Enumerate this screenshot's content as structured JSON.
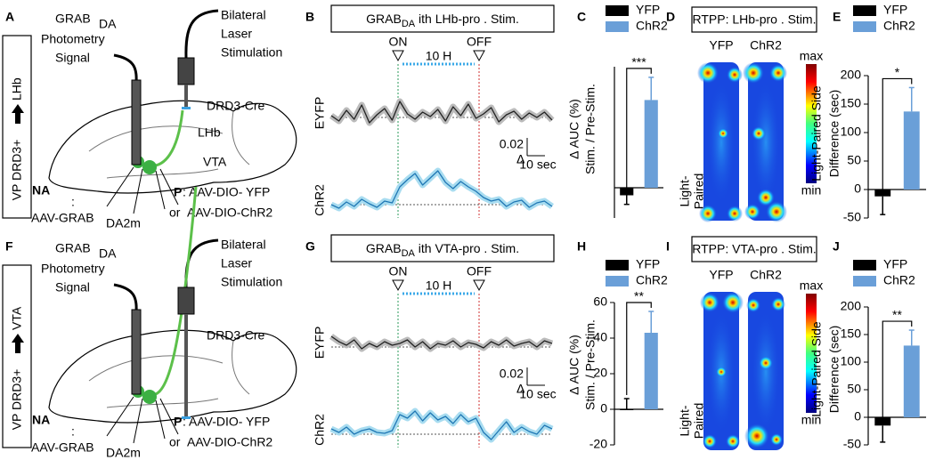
{
  "diagrams": [
    {
      "letter": "A",
      "side_label_1": "VP DRD3+",
      "side_label_2": "LHb",
      "sensor": "GRAB",
      "sensor_sub": "DA",
      "photometry_1": "Photometry",
      "photometry_2": "Signal",
      "laser_1": "Bilateral",
      "laser_2": "Laser",
      "laser_3": "Stimulation",
      "line": "DRD3-Cre",
      "target": "LHb",
      "na": "NA",
      "colon": ":",
      "virus": "AAV-GRAB",
      "virus_sub": "DA2m",
      "p": "P",
      "p_rest": ": AAV-DIO-   YFP",
      "or": "or",
      "chr2": "AAV-DIO-ChR2"
    },
    {
      "letter": "F",
      "side_label_1": "VP DRD3+",
      "side_label_2": "VTA",
      "sensor": "GRAB",
      "sensor_sub": "DA",
      "photometry_1": "Photometry",
      "photometry_2": "Signal",
      "laser_1": "Bilateral",
      "laser_2": "Laser",
      "laser_3": "Stimulation",
      "line": "DRD3-Cre",
      "target": "VTA",
      "na": "NA",
      "colon": ":",
      "virus": "AAV-GRAB",
      "virus_sub": "DA2m",
      "p": "P",
      "p_rest": ": AAV-DIO-   YFP",
      "or": "or",
      "chr2": "AAV-DIO-ChR2"
    }
  ],
  "heatmaps": [
    {
      "letter": "D",
      "title": "RTPP: LHb-pro . Stim.",
      "left": "YFP",
      "right": "ChR2",
      "max": "max",
      "min": "min",
      "side_1": "Light-",
      "side_2": "Paired"
    },
    {
      "letter": "I",
      "title": "RTPP: VTA-pro . Stim.",
      "left": "YFP",
      "right": "ChR2",
      "max": "max",
      "min": "min",
      "side_1": "Light-",
      "side_2": "Paired"
    }
  ],
  "chart_data": [
    {
      "type": "line",
      "letter": "B",
      "title": "GRAB",
      "title_sub": "DA",
      "title_rest": " ith LHb-pro . Stim.",
      "on_label": "ON",
      "off_label": "OFF",
      "duration_label": "10 H",
      "scale_bar": 0.02,
      "scale_unit": "Δ",
      "scale_time": "10 sec",
      "series": [
        {
          "name": "EYFP",
          "color": "#222222",
          "values": [
            0.002,
            -0.004,
            0.008,
            -0.002,
            0.014,
            -0.006,
            0.003,
            0.01,
            -0.003,
            0.018,
            0.004,
            -0.002,
            0.006,
            0.001,
            0.009,
            -0.004,
            0.012,
            0.002,
            0.015,
            -0.001,
            0.004,
            0.011,
            -0.005,
            0.003,
            0.007,
            -0.002,
            0.005,
            0.0,
            0.006,
            -0.003
          ]
        },
        {
          "name": "ChR2",
          "color": "#1f77b4",
          "values": [
            0.0,
            -0.004,
            0.003,
            -0.002,
            0.006,
            0.001,
            -0.003,
            0.004,
            0.002,
            0.02,
            0.028,
            0.035,
            0.022,
            0.03,
            0.038,
            0.025,
            0.018,
            0.026,
            0.02,
            0.015,
            0.008,
            0.004,
            0.006,
            -0.002,
            0.003,
            0.005,
            -0.003,
            0.002,
            0.004,
            -0.002
          ]
        }
      ]
    },
    {
      "type": "bar",
      "letter": "C",
      "ylabel": "Δ AUC (%)",
      "ylabel2": "Stim. / Pre-Stim.",
      "categories": [
        "YFP",
        "ChR2"
      ],
      "colors": [
        "#000000",
        "#6a9fd8"
      ],
      "values": [
        -5,
        58
      ],
      "errors": [
        6,
        15
      ],
      "significance": "***",
      "ylim": [
        -20,
        80
      ]
    },
    {
      "type": "bar",
      "letter": "E",
      "ylabel": "Light-Paired Side",
      "ylabel2": "Difference (sec)",
      "categories": [
        "YFP",
        "ChR2"
      ],
      "colors": [
        "#000000",
        "#6a9fd8"
      ],
      "values": [
        -12,
        137
      ],
      "errors": [
        32,
        42
      ],
      "significance": "*",
      "ylim": [
        -50,
        200
      ],
      "yticks": [
        -50,
        0,
        50,
        100,
        150,
        200
      ]
    },
    {
      "type": "line",
      "letter": "G",
      "title": "GRAB",
      "title_sub": "DA",
      "title_rest": " ith VTA-pro . Stim.",
      "on_label": "ON",
      "off_label": "OFF",
      "duration_label": "10 H",
      "scale_bar": 0.02,
      "scale_unit": "Δ",
      "scale_time": "10 sec",
      "series": [
        {
          "name": "EYFP",
          "color": "#222222",
          "values": [
            0.012,
            0.006,
            0.002,
            0.008,
            -0.002,
            0.004,
            0.0,
            0.006,
            0.002,
            0.004,
            0.008,
            0.0,
            0.006,
            -0.002,
            0.004,
            0.002,
            0.007,
            0.0,
            0.005,
            0.003,
            -0.001,
            0.006,
            0.002,
            0.008,
            0.001,
            0.004,
            0.006,
            0.0,
            0.007,
            0.004
          ]
        },
        {
          "name": "ChR2",
          "color": "#1f77b4",
          "values": [
            0.006,
            0.002,
            0.008,
            0.0,
            0.004,
            0.006,
            0.002,
            0.001,
            0.004,
            0.022,
            0.018,
            0.026,
            0.015,
            0.024,
            0.016,
            0.02,
            0.012,
            0.022,
            0.014,
            0.018,
            0.002,
            -0.006,
            0.004,
            0.014,
            0.002,
            0.008,
            0.003,
            0.0,
            0.01,
            0.006
          ]
        }
      ]
    },
    {
      "type": "bar",
      "letter": "H",
      "ylabel": "Δ AUC (%)",
      "ylabel2": "Stim. / Pre-Stim.",
      "categories": [
        "YFP",
        "ChR2"
      ],
      "colors": [
        "#000000",
        "#6a9fd8"
      ],
      "values": [
        0,
        43
      ],
      "errors": [
        6,
        12
      ],
      "significance": "**",
      "ylim": [
        -20,
        60
      ],
      "yticks": [
        -20,
        0,
        20,
        40,
        60
      ]
    },
    {
      "type": "bar",
      "letter": "J",
      "ylabel": "Light-Paired Side",
      "ylabel2": "Difference (sec)",
      "categories": [
        "YFP",
        "ChR2"
      ],
      "colors": [
        "#000000",
        "#6a9fd8"
      ],
      "values": [
        -15,
        130
      ],
      "errors": [
        30,
        28
      ],
      "significance": "**",
      "ylim": [
        -50,
        200
      ],
      "yticks": [
        -50,
        0,
        50,
        100,
        150,
        200
      ]
    }
  ]
}
